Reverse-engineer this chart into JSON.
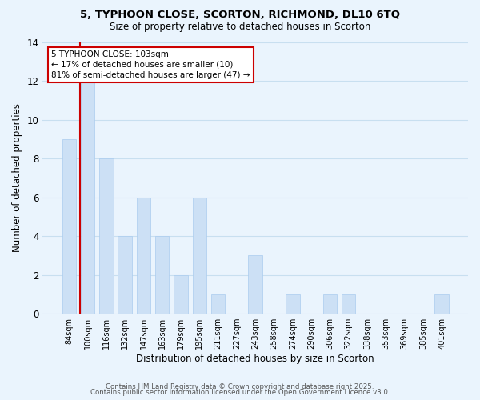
{
  "title_line1": "5, TYPHOON CLOSE, SCORTON, RICHMOND, DL10 6TQ",
  "title_line2": "Size of property relative to detached houses in Scorton",
  "xlabel": "Distribution of detached houses by size in Scorton",
  "ylabel": "Number of detached properties",
  "footer_line1": "Contains HM Land Registry data © Crown copyright and database right 2025.",
  "footer_line2": "Contains public sector information licensed under the Open Government Licence v3.0.",
  "bins": [
    "84sqm",
    "100sqm",
    "116sqm",
    "132sqm",
    "147sqm",
    "163sqm",
    "179sqm",
    "195sqm",
    "211sqm",
    "227sqm",
    "243sqm",
    "258sqm",
    "274sqm",
    "290sqm",
    "306sqm",
    "322sqm",
    "338sqm",
    "353sqm",
    "369sqm",
    "385sqm",
    "401sqm"
  ],
  "values": [
    9,
    12,
    8,
    4,
    6,
    4,
    2,
    6,
    1,
    0,
    3,
    0,
    1,
    0,
    1,
    1,
    0,
    0,
    0,
    0,
    1
  ],
  "bar_color": "#cce0f5",
  "bar_edge_color": "#aaccee",
  "grid_color": "#c8dff0",
  "background_color": "#eaf4fd",
  "red_line_bin_index": 1,
  "annotation_title": "5 TYPHOON CLOSE: 103sqm",
  "annotation_line2": "← 17% of detached houses are smaller (10)",
  "annotation_line3": "81% of semi-detached houses are larger (47) →",
  "annotation_box_color": "#ffffff",
  "annotation_border_color": "#cc0000",
  "red_line_color": "#cc0000",
  "ylim": [
    0,
    14
  ],
  "yticks": [
    0,
    2,
    4,
    6,
    8,
    10,
    12,
    14
  ]
}
